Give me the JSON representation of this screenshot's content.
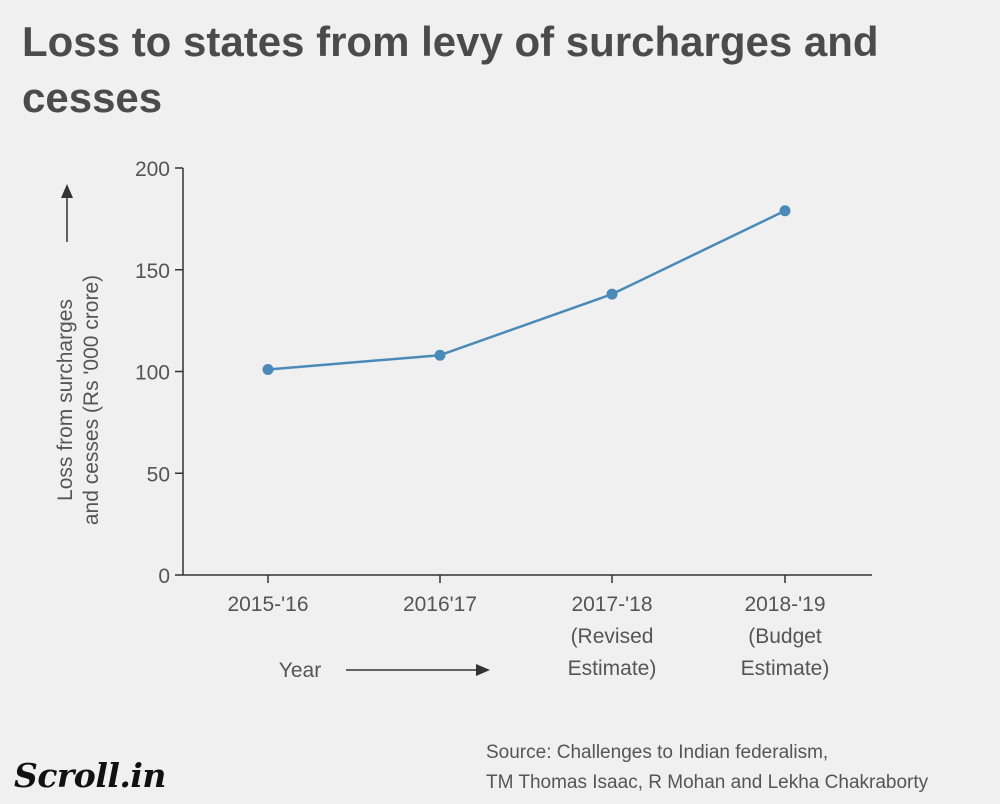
{
  "chart_data": {
    "type": "line",
    "title": "Loss to states from levy of surcharges and cesses",
    "ylabel_lines": [
      "Loss from surcharges",
      "and cesses (Rs '000 crore)"
    ],
    "xlabel": "Year",
    "categories": [
      [
        "2015-'16"
      ],
      [
        "2016'17"
      ],
      [
        "2017-'18",
        "(Revised",
        "Estimate)"
      ],
      [
        "2018-'19",
        "(Budget",
        "Estimate)"
      ]
    ],
    "series": [
      {
        "values": [
          101,
          108,
          138,
          179
        ]
      }
    ],
    "ylim": [
      0,
      200
    ],
    "yticks": [
      0,
      50,
      100,
      150,
      200
    ],
    "grid": false,
    "line_color": "#4a8ab8"
  },
  "source_text_lines": [
    "Source:  Challenges to Indian federalism,",
    "TM Thomas Isaac, R Mohan and Lekha Chakraborty"
  ],
  "brand": "Scroll.in"
}
